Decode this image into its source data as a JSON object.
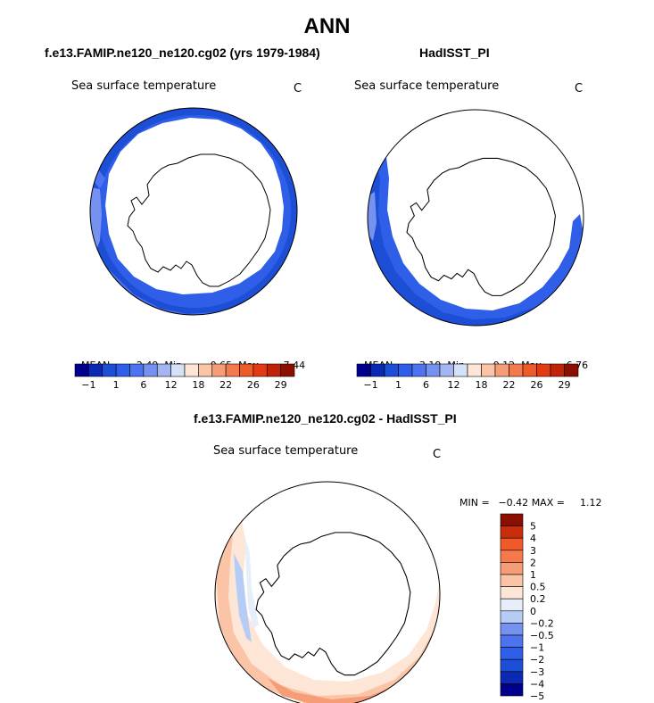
{
  "title": "ANN",
  "palettes": {
    "abs": [
      "#00008c",
      "#0c29b3",
      "#1c4fd6",
      "#2f5fe8",
      "#4d73f0",
      "#7592f0",
      "#a3b6f2",
      "#d4e1f7",
      "#fde6d6",
      "#fbc4a6",
      "#f69c76",
      "#f47a4d",
      "#ef5a28",
      "#e33a14",
      "#c02308",
      "#8c0e00"
    ],
    "diff": [
      "#00008c",
      "#0c29b3",
      "#1c4fd6",
      "#2f5fe8",
      "#4d73f0",
      "#7592f0",
      "#b5cdf5",
      "#e6eefa",
      "#fde6d6",
      "#fbc4a6",
      "#f69c76",
      "#f47a4d",
      "#ef5a28",
      "#c82d0c",
      "#8c0e00"
    ]
  },
  "panels": [
    {
      "title": "f.e13.FAMIP.ne120_ne120.cg02 (yrs 1979-1984)",
      "var_label": "Sea surface temperature",
      "units": "C",
      "stats": {
        "mean_label": "MEAN=",
        "mean": "2.49",
        "min_label": "Min=",
        "min": "−0.65",
        "max_label": "Max=",
        "max": "7.44"
      },
      "colorbar_ticks": [
        "−1",
        "1",
        "6",
        "12",
        "18",
        "22",
        "26",
        "29"
      ]
    },
    {
      "title": "HadISST_PI",
      "var_label": "Sea surface temperature",
      "units": "C",
      "stats": {
        "mean_label": "MEAN=",
        "mean": "3.19",
        "min_label": "Min=",
        "min": "−0.12",
        "max_label": "Max=",
        "max": "6.76"
      },
      "colorbar_ticks": [
        "−1",
        "1",
        "6",
        "12",
        "18",
        "22",
        "26",
        "29"
      ]
    },
    {
      "title": "f.e13.FAMIP.ne120_ne120.cg02 - HadISST_PI",
      "var_label": "Sea surface temperature",
      "units": "C",
      "stats": {
        "min_label": "MIN =",
        "min": "−0.42",
        "max_label": "MAX =",
        "max": "1.12"
      },
      "colorbar_ticks": [
        "5",
        "4",
        "3",
        "2",
        "1",
        "0.5",
        "0.2",
        "0",
        "−0.2",
        "−0.5",
        "−1",
        "−2",
        "−3",
        "−4",
        "−5"
      ]
    }
  ],
  "chart_data": [
    {
      "type": "heatmap",
      "projection": "south-polar-stereographic",
      "title": "f.e13.FAMIP.ne120_ne120.cg02 (yrs 1979-1984)",
      "variable": "Sea surface temperature",
      "units": "C",
      "mean": 2.49,
      "min": -0.65,
      "max": 7.44,
      "contour_levels": [
        -1,
        1,
        6,
        12,
        18,
        22,
        26,
        29
      ]
    },
    {
      "type": "heatmap",
      "projection": "south-polar-stereographic",
      "title": "HadISST_PI",
      "variable": "Sea surface temperature",
      "units": "C",
      "mean": 3.19,
      "min": -0.12,
      "max": 6.76,
      "contour_levels": [
        -1,
        1,
        6,
        12,
        18,
        22,
        26,
        29
      ]
    },
    {
      "type": "heatmap",
      "projection": "south-polar-stereographic",
      "title": "f.e13.FAMIP.ne120_ne120.cg02 - HadISST_PI",
      "variable": "Sea surface temperature",
      "units": "C",
      "min": -0.42,
      "max": 1.12,
      "contour_levels": [
        5,
        4,
        3,
        2,
        1,
        0.5,
        0.2,
        0,
        -0.2,
        -0.5,
        -1,
        -2,
        -3,
        -4,
        -5
      ]
    }
  ]
}
